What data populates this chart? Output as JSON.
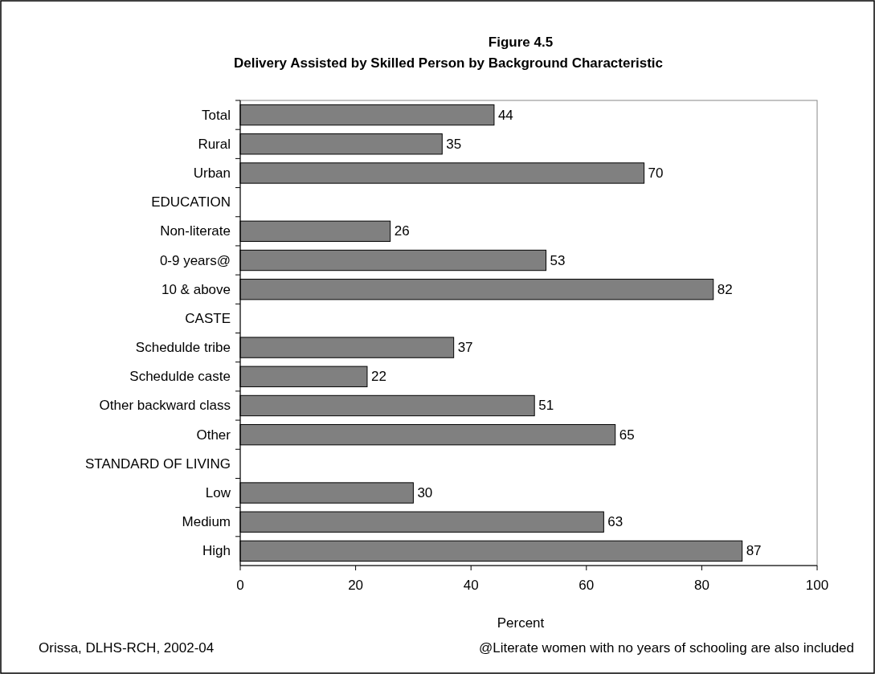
{
  "chart_data": {
    "type": "bar",
    "orientation": "horizontal",
    "title": "Figure 4.5",
    "subtitle": "Delivery Assisted by Skilled Person by Background Characteristic",
    "xlabel": "Percent",
    "categories": [
      "Total",
      "Rural",
      "Urban",
      "EDUCATION",
      "Non-literate",
      "0-9 years@",
      "10 & above",
      "CASTE",
      "Schedulde tribe",
      "Schedulde caste",
      "Other backward class",
      "Other",
      "STANDARD OF LIVING",
      "Low",
      "Medium",
      "High"
    ],
    "values": [
      44,
      35,
      70,
      null,
      26,
      53,
      82,
      null,
      37,
      22,
      51,
      65,
      null,
      30,
      63,
      87
    ],
    "color": "#808080",
    "xlim": [
      0,
      100
    ],
    "xticks": [
      0,
      20,
      40,
      60,
      80,
      100
    ],
    "grid": false,
    "data_labels": true,
    "annotations": [
      "Orissa, DLHS-RCH, 2002-04",
      "@Literate women with no years of schooling are also included"
    ]
  }
}
